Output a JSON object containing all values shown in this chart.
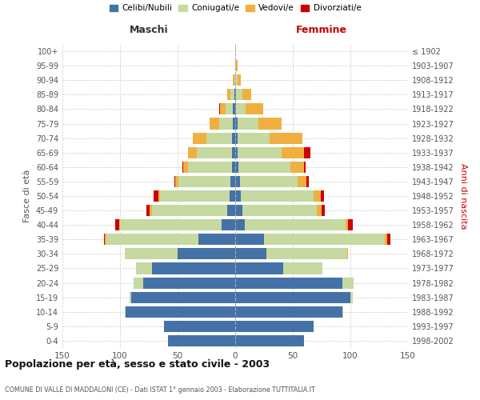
{
  "age_groups_bottom_to_top": [
    "0-4",
    "5-9",
    "10-14",
    "15-19",
    "20-24",
    "25-29",
    "30-34",
    "35-39",
    "40-44",
    "45-49",
    "50-54",
    "55-59",
    "60-64",
    "65-69",
    "70-74",
    "75-79",
    "80-84",
    "85-89",
    "90-94",
    "95-99",
    "100+"
  ],
  "birth_years_bottom_to_top": [
    "1998-2002",
    "1993-1997",
    "1988-1992",
    "1983-1987",
    "1978-1982",
    "1973-1977",
    "1968-1972",
    "1963-1967",
    "1958-1962",
    "1953-1957",
    "1948-1952",
    "1943-1947",
    "1938-1942",
    "1933-1937",
    "1928-1932",
    "1923-1927",
    "1918-1922",
    "1913-1917",
    "1908-1912",
    "1903-1907",
    "≤ 1902"
  ],
  "maschi_celibe": [
    58,
    62,
    95,
    90,
    80,
    72,
    50,
    32,
    12,
    7,
    5,
    4,
    3,
    3,
    3,
    2,
    2,
    1,
    0,
    0,
    0
  ],
  "maschi_coniugato": [
    0,
    0,
    1,
    2,
    8,
    14,
    46,
    80,
    88,
    65,
    60,
    45,
    38,
    30,
    22,
    12,
    6,
    3,
    1,
    0,
    0
  ],
  "maschi_vedovo": [
    0,
    0,
    0,
    0,
    0,
    0,
    0,
    1,
    1,
    2,
    2,
    3,
    4,
    8,
    12,
    8,
    5,
    3,
    1,
    0,
    0
  ],
  "maschi_divorziato": [
    0,
    0,
    0,
    0,
    0,
    0,
    0,
    1,
    3,
    3,
    4,
    1,
    1,
    0,
    0,
    0,
    1,
    0,
    0,
    0,
    0
  ],
  "femmine_nubile": [
    60,
    68,
    93,
    100,
    93,
    42,
    27,
    25,
    8,
    6,
    5,
    4,
    3,
    2,
    2,
    2,
    1,
    1,
    0,
    0,
    0
  ],
  "femmine_coniugata": [
    0,
    0,
    1,
    2,
    10,
    34,
    70,
    105,
    88,
    65,
    63,
    50,
    45,
    38,
    28,
    18,
    8,
    5,
    2,
    1,
    0
  ],
  "femmine_vedova": [
    0,
    0,
    0,
    0,
    0,
    0,
    1,
    2,
    2,
    4,
    6,
    8,
    12,
    20,
    28,
    20,
    15,
    8,
    3,
    1,
    0
  ],
  "femmine_divorziata": [
    0,
    0,
    0,
    0,
    0,
    0,
    0,
    3,
    4,
    3,
    3,
    2,
    1,
    5,
    0,
    0,
    0,
    0,
    0,
    0,
    0
  ],
  "colors": {
    "celibe": "#4472a8",
    "coniugato": "#c5d9a0",
    "vedovo": "#f0b040",
    "divorziato": "#cc0000"
  },
  "title": "Popolazione per età, sesso e stato civile - 2003",
  "subtitle": "COMUNE DI VALLE DI MADDALONI (CE) - Dati ISTAT 1° gennaio 2003 - Elaborazione TUTTITALIA.IT",
  "xlabel_maschi": "Maschi",
  "xlabel_femmine": "Femmine",
  "ylabel_left": "Fasce di età",
  "ylabel_right": "Anni di nascita",
  "xlim": 150,
  "legend_labels": [
    "Celibi/Nubili",
    "Coniugati/e",
    "Vedovi/e",
    "Divorziati/e"
  ]
}
